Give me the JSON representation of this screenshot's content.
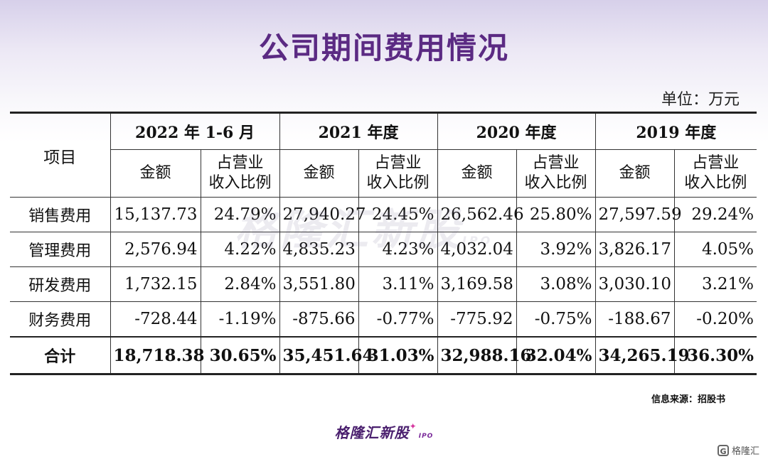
{
  "title": "公司期间费用情况",
  "unit_label": "单位：万元",
  "table": {
    "item_header": "项目",
    "periods": [
      "2022 年 1-6 月",
      "2021 年度",
      "2020 年度",
      "2019 年度"
    ],
    "amount_label": "金额",
    "ratio_label_line1": "占营业",
    "ratio_label_line2": "收入比例",
    "rows": [
      {
        "label": "销售费用",
        "v": [
          "15,137.73",
          "24.79%",
          "27,940.27",
          "24.45%",
          "26,562.46",
          "25.80%",
          "27,597.59",
          "29.24%"
        ]
      },
      {
        "label": "管理费用",
        "v": [
          "2,576.94",
          "4.22%",
          "4,835.23",
          "4.23%",
          "4,032.04",
          "3.92%",
          "3,826.17",
          "4.05%"
        ]
      },
      {
        "label": "研发费用",
        "v": [
          "1,732.15",
          "2.84%",
          "3,551.80",
          "3.11%",
          "3,169.58",
          "3.08%",
          "3,030.10",
          "3.21%"
        ]
      },
      {
        "label": "财务费用",
        "v": [
          "-728.44",
          "-1.19%",
          "-875.66",
          "-0.77%",
          "-775.92",
          "-0.75%",
          "-188.67",
          "-0.20%"
        ]
      }
    ],
    "total": {
      "label": "合计",
      "v": [
        "18,718.38",
        "30.65%",
        "35,451.64",
        "31.03%",
        "32,988.16",
        "32.04%",
        "34,265.19",
        "36.30%"
      ]
    }
  },
  "source_note": "信息来源：招股书",
  "watermark_text": "格隆汇新股",
  "watermark_ipo": "IPO",
  "footer_brand": "格隆汇新股",
  "footer_ipo": "IPO",
  "corner_logo_text": "格隆汇",
  "corner_logo_icon": "G",
  "colors": {
    "title": "#5b2a83",
    "brand": "#4a1f6e"
  }
}
